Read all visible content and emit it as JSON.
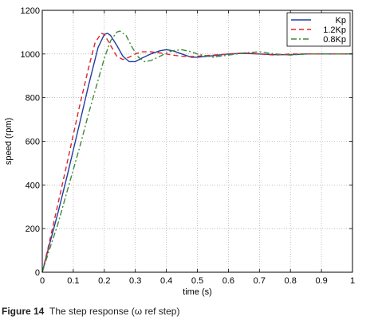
{
  "chart_data": {
    "type": "line",
    "title": "",
    "xlabel": "time (s)",
    "ylabel": "speed (rpm)",
    "xlim": [
      0,
      1
    ],
    "ylim": [
      0,
      1200
    ],
    "xticks": [
      0,
      0.1,
      0.2,
      0.3,
      0.4,
      0.5,
      0.6,
      0.7,
      0.8,
      0.9,
      1
    ],
    "xtick_labels": [
      "0",
      "0.1",
      "0.2",
      "0.3",
      "0.4",
      "0.5",
      "0.6",
      "0.7",
      "0.8",
      "0.9",
      "1"
    ],
    "yticks": [
      0,
      200,
      400,
      600,
      800,
      1000,
      1200
    ],
    "ytick_labels": [
      "0",
      "200",
      "400",
      "600",
      "800",
      "1000",
      "1200"
    ],
    "grid": true,
    "legend_position": "top-right",
    "series": [
      {
        "name": "Kp",
        "color": "#1f3f9e",
        "dash": "solid",
        "x": [
          0,
          0.02,
          0.05,
          0.08,
          0.1,
          0.12,
          0.15,
          0.18,
          0.2,
          0.21,
          0.22,
          0.24,
          0.26,
          0.28,
          0.3,
          0.32,
          0.35,
          0.38,
          0.4,
          0.42,
          0.45,
          0.48,
          0.5,
          0.55,
          0.6,
          0.65,
          0.7,
          0.75,
          0.8,
          0.85,
          0.9,
          0.95,
          1.0
        ],
        "y": [
          0,
          110,
          270,
          440,
          560,
          680,
          860,
          1030,
          1090,
          1095,
          1085,
          1040,
          990,
          965,
          965,
          980,
          1000,
          1015,
          1020,
          1015,
          1000,
          985,
          985,
          992,
          1000,
          1003,
          1000,
          997,
          997,
          1000,
          1000,
          1000,
          1000
        ]
      },
      {
        "name": "1.2Kp",
        "color": "#e0242b",
        "dash": "dashed",
        "x": [
          0,
          0.02,
          0.05,
          0.08,
          0.1,
          0.12,
          0.15,
          0.17,
          0.19,
          0.2,
          0.22,
          0.24,
          0.26,
          0.28,
          0.3,
          0.32,
          0.35,
          0.38,
          0.4,
          0.42,
          0.45,
          0.48,
          0.5,
          0.55,
          0.6,
          0.65,
          0.7,
          0.75,
          0.8,
          0.85,
          0.9,
          0.95,
          1.0
        ],
        "y": [
          0,
          120,
          310,
          500,
          630,
          760,
          940,
          1050,
          1095,
          1090,
          1040,
          990,
          975,
          985,
          1000,
          1010,
          1010,
          1005,
          1000,
          995,
          990,
          988,
          990,
          995,
          1000,
          1005,
          1000,
          995,
          1000,
          1000,
          1000,
          1000,
          1000
        ]
      },
      {
        "name": "0.8Kp",
        "color": "#3f8a35",
        "dash": "dashdot",
        "x": [
          0,
          0.02,
          0.05,
          0.08,
          0.1,
          0.12,
          0.15,
          0.18,
          0.2,
          0.22,
          0.24,
          0.25,
          0.27,
          0.29,
          0.31,
          0.33,
          0.35,
          0.38,
          0.4,
          0.42,
          0.45,
          0.48,
          0.5,
          0.55,
          0.6,
          0.65,
          0.7,
          0.75,
          0.8,
          0.85,
          0.9,
          0.95,
          1.0
        ],
        "y": [
          0,
          90,
          220,
          370,
          470,
          570,
          730,
          880,
          980,
          1060,
          1100,
          1105,
          1085,
          1030,
          985,
          965,
          970,
          990,
          1005,
          1015,
          1020,
          1010,
          1000,
          985,
          995,
          1005,
          1010,
          1000,
          995,
          1000,
          1000,
          1000,
          1000
        ]
      }
    ]
  },
  "caption": {
    "label": "Figure 14",
    "text": "The step response (ω ref step)"
  }
}
